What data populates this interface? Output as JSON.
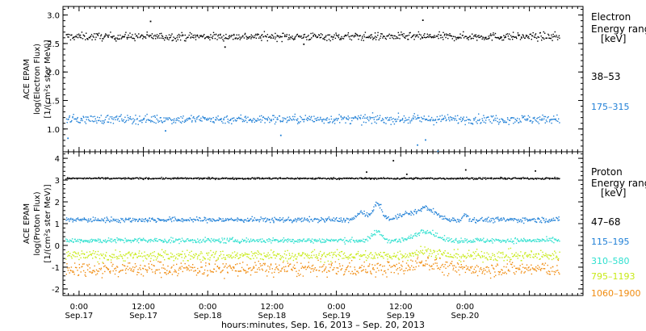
{
  "chart_data": [
    {
      "type": "scatter",
      "ylabel_lines": [
        "ACE EPAM",
        "log(Electron Flux)",
        "[1/(cm²s ster MeV)]"
      ],
      "ylim": [
        0.6,
        3.15
      ],
      "yticks": [
        1.0,
        1.5,
        2.0,
        2.5,
        3.0
      ],
      "ytick_labels": [
        "1.0",
        "1.5",
        "2.0",
        "2.5",
        "3.0"
      ],
      "legend": {
        "title_lines": [
          "Electron",
          "Energy ranges",
          "[keV]"
        ],
        "entries": [
          "38–53",
          "175–315"
        ]
      },
      "series": [
        {
          "name": "38–53",
          "color": "#000000",
          "level": 2.63,
          "spread": 0.07,
          "outliers": [
            [
              13.2,
              2.9
            ],
            [
              27.1,
              2.45
            ],
            [
              41.8,
              2.5
            ],
            [
              64.0,
              2.92
            ]
          ]
        },
        {
          "name": "175–315",
          "color": "#1f7fd6",
          "level": 1.18,
          "spread": 0.08,
          "outliers": [
            [
              -2.2,
              0.85
            ],
            [
              16.0,
              0.98
            ],
            [
              37.5,
              0.9
            ],
            [
              63.0,
              0.73
            ],
            [
              64.5,
              0.82
            ],
            [
              66.8,
              0.62
            ]
          ]
        }
      ]
    },
    {
      "type": "scatter",
      "ylabel_lines": [
        "ACE EPAM",
        "log(Proton Flux)",
        "[1/(cm²s ster MeV)]"
      ],
      "ylim": [
        -2.3,
        4.3
      ],
      "yticks": [
        -2,
        -1,
        0,
        1,
        2,
        3,
        4
      ],
      "ytick_labels": [
        "-2",
        "-1",
        "0",
        "1",
        "2",
        "3",
        "4"
      ],
      "legend": {
        "title_lines": [
          "Proton",
          "Energy ranges",
          "[keV]"
        ],
        "entries": [
          "47–68",
          "115–195",
          "310–580",
          "795–1193",
          "1060–1900"
        ]
      },
      "series": [
        {
          "name": "47–68",
          "color": "#000000",
          "level": 3.1,
          "spread": 0.04,
          "outliers": [
            [
              53.5,
              3.4
            ],
            [
              58.5,
              3.92
            ],
            [
              61.0,
              3.3
            ],
            [
              72.0,
              3.5
            ],
            [
              85.0,
              3.45
            ]
          ]
        },
        {
          "name": "115–195",
          "color": "#1f7fd6",
          "level": 1.2,
          "spread": 0.12,
          "bumps": [
            [
              52.5,
              0.35,
              1.0
            ],
            [
              55.5,
              0.75,
              1.2
            ],
            [
              60.5,
              0.25,
              1.5
            ],
            [
              64.5,
              0.55,
              2.5
            ],
            [
              72.0,
              0.25,
              0.6
            ]
          ]
        },
        {
          "name": "310–580",
          "color": "#2fe0cf",
          "level": 0.25,
          "spread": 0.12,
          "bumps": [
            [
              55.5,
              0.4,
              1.2
            ],
            [
              64.5,
              0.45,
              2.5
            ]
          ]
        },
        {
          "name": "795–1193",
          "color": "#c8ea18",
          "level": -0.45,
          "spread": 0.25,
          "bumps": [
            [
              64.5,
              0.2,
              3.0
            ]
          ]
        },
        {
          "name": "1060–1900",
          "color": "#f08c10",
          "level": -1.05,
          "spread": 0.35,
          "bumps": [
            [
              64.5,
              0.3,
              3.0
            ]
          ]
        }
      ]
    }
  ],
  "x_axis": {
    "range_hours": [
      -3.0,
      94.0
    ],
    "data_end_hours": 89.5,
    "major_ticks": [
      0,
      12,
      24,
      36,
      48,
      60,
      72,
      84
    ],
    "minor_step": 1,
    "time_labels": [
      "0:00",
      "12:00",
      "0:00",
      "12:00",
      "0:00",
      "12:00",
      "0:00"
    ],
    "date_labels": [
      "Sep.17",
      "Sep.17",
      "Sep.18",
      "Sep.18",
      "Sep.19",
      "Sep.19",
      "Sep.20"
    ],
    "label_hours": [
      0,
      12,
      24,
      36,
      48,
      60,
      72
    ],
    "title": "hours:minutes, Sep. 16, 2013 – Sep. 20, 2013"
  }
}
